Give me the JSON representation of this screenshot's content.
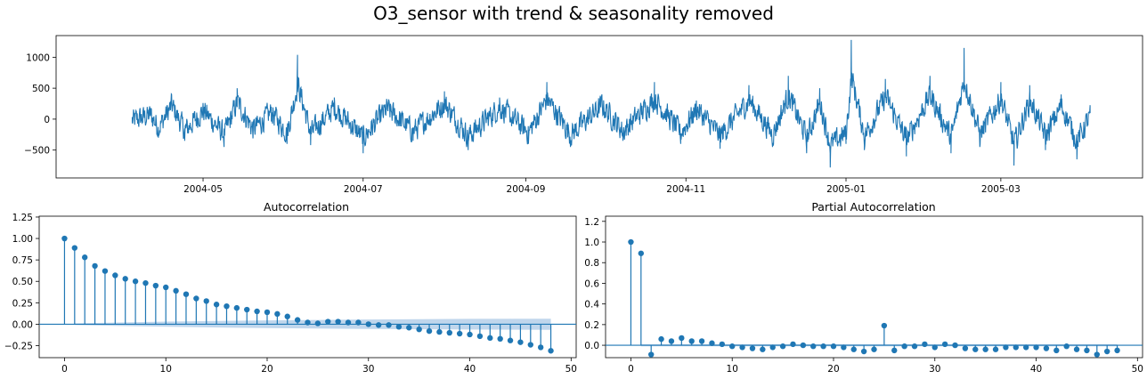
{
  "figure_title": "O3_sensor with trend & seasonality removed",
  "colors": {
    "series": "#1f77b4",
    "band": "#b9d1ea",
    "axis": "#000000"
  },
  "chart_data": [
    {
      "type": "line",
      "title": "",
      "xlabel": "",
      "ylabel": "",
      "x_tick_labels": [
        "2004-05",
        "2004-07",
        "2004-09",
        "2004-11",
        "2005-01",
        "2005-03"
      ],
      "x_range": [
        "2004-03-06",
        "2005-04-24"
      ],
      "data_range": [
        "2004-04-04",
        "2005-04-04"
      ],
      "y_ticks": [
        -500,
        0,
        500,
        1000
      ],
      "ylim": [
        -950,
        1350
      ],
      "series": [
        {
          "x": [
            "2004-04-04",
            "2004-04-11",
            "2004-04-14",
            "2004-04-19",
            "2004-04-24",
            "2004-05-01",
            "2004-05-09",
            "2004-05-14",
            "2004-05-20",
            "2004-05-27",
            "2004-06-02",
            "2004-06-06",
            "2004-06-11",
            "2004-06-20",
            "2004-07-01",
            "2004-07-10",
            "2004-07-20",
            "2004-08-01",
            "2004-08-10",
            "2004-08-22",
            "2004-09-02",
            "2004-09-09",
            "2004-09-18",
            "2004-09-30",
            "2004-10-08",
            "2004-10-20",
            "2004-10-30",
            "2004-11-05",
            "2004-11-14",
            "2004-11-25",
            "2004-12-04",
            "2004-12-10",
            "2004-12-17",
            "2004-12-22",
            "2004-12-26",
            "2005-01-01",
            "2005-01-03",
            "2005-01-08",
            "2005-01-16",
            "2005-01-24",
            "2005-02-02",
            "2005-02-10",
            "2005-02-15",
            "2005-02-21",
            "2005-03-01",
            "2005-03-06",
            "2005-03-12",
            "2005-03-18",
            "2005-03-24",
            "2005-03-30",
            "2005-04-04"
          ],
          "y": [
            -50,
            120,
            -250,
            400,
            -350,
            250,
            -450,
            500,
            -300,
            200,
            -400,
            1040,
            -420,
            350,
            -550,
            300,
            -350,
            450,
            -500,
            350,
            -400,
            600,
            -450,
            400,
            -350,
            600,
            -400,
            300,
            -480,
            550,
            -450,
            700,
            -550,
            500,
            -780,
            -400,
            1280,
            -500,
            650,
            -600,
            700,
            -550,
            1150,
            -450,
            600,
            -750,
            550,
            -500,
            400,
            -650,
            100
          ]
        }
      ]
    },
    {
      "type": "stem",
      "title": "Autocorrelation",
      "xlabel": "",
      "ylabel": "",
      "x_ticks": [
        0,
        10,
        20,
        30,
        40,
        50
      ],
      "xlim": [
        -2.5,
        50.5
      ],
      "y_ticks": [
        -0.25,
        0.0,
        0.25,
        0.5,
        0.75,
        1.0,
        1.25
      ],
      "y_tick_labels": [
        "−0.25",
        "0.00",
        "0.25",
        "0.50",
        "0.75",
        "1.00",
        "1.25"
      ],
      "ylim": [
        -0.39,
        1.26
      ],
      "confidence_band": {
        "x": [
          1,
          10,
          20,
          30,
          40,
          48
        ],
        "upper": [
          0.01,
          0.03,
          0.045,
          0.055,
          0.062,
          0.065
        ]
      },
      "lags": [
        0,
        1,
        2,
        3,
        4,
        5,
        6,
        7,
        8,
        9,
        10,
        11,
        12,
        13,
        14,
        15,
        16,
        17,
        18,
        19,
        20,
        21,
        22,
        23,
        24,
        25,
        26,
        27,
        28,
        29,
        30,
        31,
        32,
        33,
        34,
        35,
        36,
        37,
        38,
        39,
        40,
        41,
        42,
        43,
        44,
        45,
        46,
        47,
        48
      ],
      "values": [
        1.0,
        0.89,
        0.78,
        0.68,
        0.62,
        0.57,
        0.53,
        0.5,
        0.48,
        0.45,
        0.43,
        0.39,
        0.35,
        0.3,
        0.27,
        0.23,
        0.21,
        0.19,
        0.17,
        0.15,
        0.14,
        0.12,
        0.09,
        0.05,
        0.02,
        0.01,
        0.03,
        0.03,
        0.02,
        0.02,
        0.0,
        -0.01,
        -0.01,
        -0.03,
        -0.04,
        -0.06,
        -0.08,
        -0.09,
        -0.1,
        -0.11,
        -0.12,
        -0.14,
        -0.16,
        -0.17,
        -0.19,
        -0.21,
        -0.24,
        -0.27,
        -0.31
      ]
    },
    {
      "type": "stem",
      "title": "Partial Autocorrelation",
      "xlabel": "",
      "ylabel": "",
      "x_ticks": [
        0,
        10,
        20,
        30,
        40,
        50
      ],
      "xlim": [
        -2.5,
        50.5
      ],
      "y_ticks": [
        0.0,
        0.2,
        0.4,
        0.6,
        0.8,
        1.0,
        1.2
      ],
      "y_tick_labels": [
        "0.0",
        "0.2",
        "0.4",
        "0.6",
        "0.8",
        "1.0",
        "1.2"
      ],
      "ylim": [
        -0.12,
        1.25
      ],
      "confidence_band": {
        "x": [
          1,
          48
        ],
        "upper": [
          0.01,
          0.01
        ]
      },
      "lags": [
        0,
        1,
        2,
        3,
        4,
        5,
        6,
        7,
        8,
        9,
        10,
        11,
        12,
        13,
        14,
        15,
        16,
        17,
        18,
        19,
        20,
        21,
        22,
        23,
        24,
        25,
        26,
        27,
        28,
        29,
        30,
        31,
        32,
        33,
        34,
        35,
        36,
        37,
        38,
        39,
        40,
        41,
        42,
        43,
        44,
        45,
        46,
        47,
        48
      ],
      "values": [
        1.0,
        0.89,
        -0.09,
        0.06,
        0.04,
        0.07,
        0.04,
        0.04,
        0.02,
        0.01,
        -0.01,
        -0.02,
        -0.03,
        -0.04,
        -0.02,
        -0.01,
        0.01,
        0.0,
        -0.01,
        -0.01,
        -0.01,
        -0.02,
        -0.04,
        -0.06,
        -0.04,
        0.19,
        -0.05,
        -0.01,
        -0.01,
        0.01,
        -0.02,
        0.01,
        0.0,
        -0.03,
        -0.04,
        -0.04,
        -0.04,
        -0.02,
        -0.02,
        -0.02,
        -0.02,
        -0.03,
        -0.05,
        -0.01,
        -0.04,
        -0.05,
        -0.09,
        -0.06,
        -0.05
      ]
    }
  ]
}
